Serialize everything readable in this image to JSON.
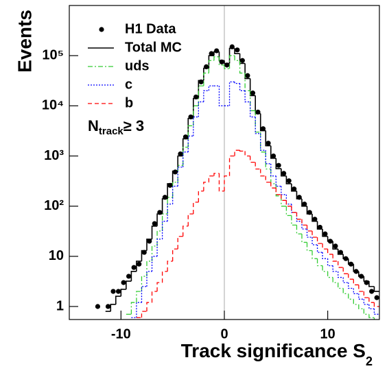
{
  "chart_data": {
    "type": "histogram",
    "ylabel": "Events",
    "xlabel": "Track significance S",
    "xlabel_sub": "2",
    "annotation": {
      "text": "N",
      "subscript": "track",
      "suffix": "≥ 3"
    },
    "xlim": [
      -15,
      15
    ],
    "xticks": [
      -10,
      0,
      10
    ],
    "ylim": [
      0.55,
      1000000
    ],
    "yticks": [
      1,
      10,
      {
        "value": 100,
        "label": "10²"
      },
      {
        "value": 1000,
        "label": "10³"
      },
      {
        "value": 10000,
        "label": "10⁴"
      },
      {
        "value": 100000,
        "label": "10⁵"
      }
    ],
    "log_y": true,
    "zero_line": true,
    "legend": "top-left",
    "bins": [
      -15,
      -14.5,
      -14,
      -13.5,
      -13,
      -12.5,
      -12,
      -11.5,
      -11,
      -10.5,
      -10,
      -9.5,
      -9,
      -8.5,
      -8,
      -7.5,
      -7,
      -6.5,
      -6,
      -5.5,
      -5,
      -4.5,
      -4,
      -3.5,
      -3,
      -2.5,
      -2,
      -1.5,
      -1,
      -0.5,
      0,
      0.5,
      1,
      1.5,
      2,
      2.5,
      3,
      3.5,
      4,
      4.5,
      5,
      5.5,
      6,
      6.5,
      7,
      7.5,
      8,
      8.5,
      9,
      9.5,
      10,
      10.5,
      11,
      11.5,
      12,
      12.5,
      13,
      13.5,
      14,
      14.5,
      15
    ],
    "series": [
      {
        "name": "H1 Data",
        "color": "#000000",
        "style": "points",
        "values": [
          null,
          null,
          null,
          null,
          null,
          1,
          null,
          1,
          2,
          2,
          3,
          4,
          6,
          7,
          12,
          20,
          45,
          75,
          150,
          260,
          480,
          1100,
          2400,
          6000,
          15000,
          30000,
          60000,
          110000,
          125000,
          75000,
          65000,
          150000,
          130000,
          80000,
          40000,
          18000,
          7500,
          3500,
          1800,
          1000,
          650,
          450,
          320,
          220,
          150,
          110,
          75,
          55,
          38,
          28,
          20,
          16,
          12,
          9,
          7,
          5,
          4,
          3,
          2,
          1.5
        ]
      },
      {
        "name": "Total MC",
        "color": "#000000",
        "style": "solid",
        "values": [
          null,
          null,
          null,
          null,
          null,
          null,
          null,
          0.8,
          1.1,
          1.6,
          2.2,
          3.2,
          5,
          8,
          13,
          22,
          40,
          70,
          140,
          280,
          500,
          1000,
          2200,
          5600,
          14000,
          32000,
          56000,
          100000,
          120000,
          80000,
          70000,
          140000,
          110000,
          70000,
          35000,
          16000,
          7000,
          3200,
          1600,
          900,
          560,
          400,
          280,
          200,
          140,
          100,
          70,
          50,
          35,
          25,
          20,
          14,
          11,
          9,
          7,
          5,
          4,
          3.2,
          2.5,
          2
        ]
      },
      {
        "name": "uds",
        "color": "#33cc33",
        "style": "dashdot",
        "values": [
          null,
          null,
          null,
          null,
          null,
          null,
          null,
          null,
          null,
          null,
          null,
          0.7,
          1.2,
          2,
          4,
          8,
          16,
          32,
          70,
          150,
          300,
          650,
          1500,
          4000,
          10000,
          25000,
          45000,
          80000,
          95000,
          65000,
          55000,
          100000,
          80000,
          45000,
          20000,
          8000,
          3000,
          1200,
          550,
          280,
          160,
          100,
          65,
          42,
          28,
          19,
          13,
          9,
          6.5,
          5,
          3.8,
          3,
          2.3,
          1.8,
          1.4,
          1.1,
          0.9,
          0.7,
          0.6,
          0.5
        ]
      },
      {
        "name": "c",
        "color": "#0000ff",
        "style": "dotted",
        "values": [
          null,
          null,
          null,
          null,
          null,
          null,
          null,
          null,
          null,
          null,
          null,
          null,
          0.6,
          1.2,
          2.5,
          5,
          10,
          22,
          50,
          110,
          250,
          600,
          1200,
          2500,
          6000,
          12000,
          20000,
          25000,
          25000,
          10000,
          10000,
          30000,
          28000,
          20000,
          12000,
          6000,
          2800,
          1300,
          700,
          400,
          250,
          170,
          110,
          75,
          50,
          35,
          24,
          17,
          12,
          9,
          6.5,
          5,
          3.8,
          3,
          2.3,
          1.8,
          1.4,
          1.1,
          0.9,
          0.7
        ]
      },
      {
        "name": "b",
        "color": "#ff0000",
        "style": "dashed",
        "values": [
          null,
          null,
          null,
          null,
          null,
          null,
          null,
          null,
          null,
          null,
          null,
          null,
          null,
          0.6,
          0.8,
          1.2,
          2,
          3,
          5,
          8,
          14,
          25,
          40,
          70,
          120,
          200,
          300,
          400,
          450,
          200,
          400,
          1000,
          1300,
          1250,
          1000,
          750,
          550,
          400,
          300,
          230,
          170,
          130,
          100,
          75,
          55,
          42,
          32,
          24,
          18,
          14,
          11,
          8,
          6,
          4.5,
          3.5,
          2.7,
          2,
          1.5,
          1.2,
          1
        ]
      }
    ]
  }
}
